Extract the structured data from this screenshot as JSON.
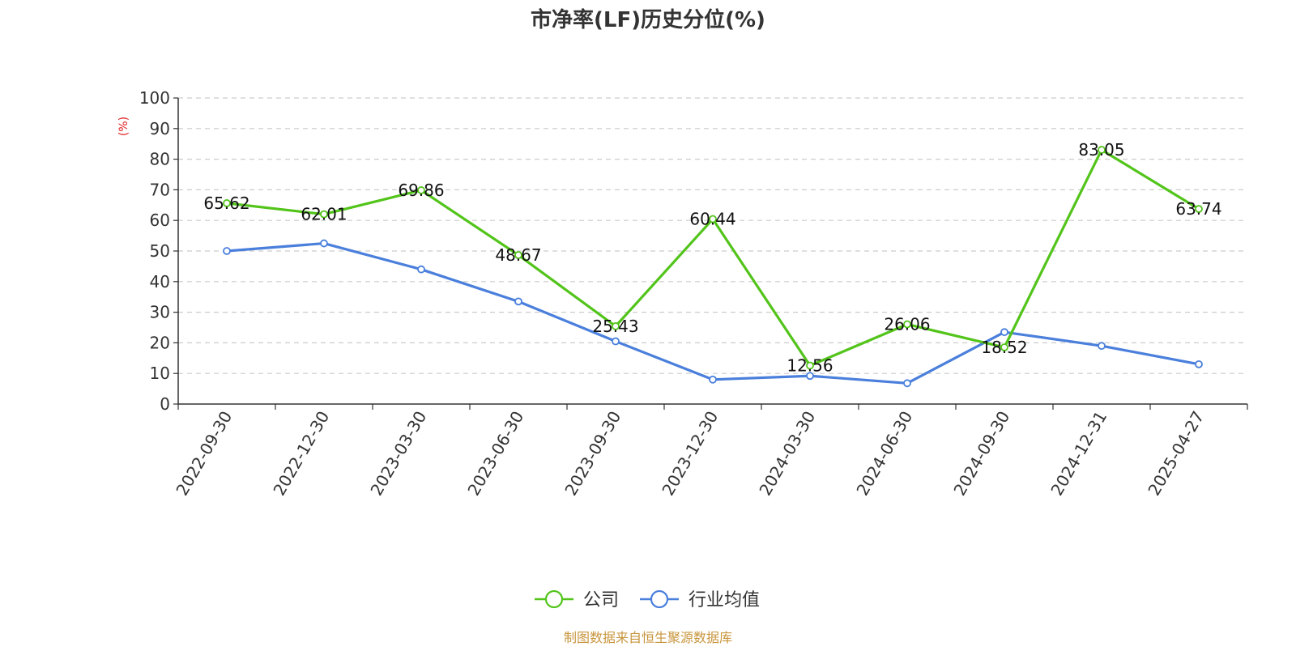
{
  "chart_data": {
    "type": "line",
    "title": "市净率(LF)历史分位(%)",
    "ylabel": "(%)",
    "xlabel": "",
    "ylim": [
      0,
      100
    ],
    "yticks": [
      0,
      10,
      20,
      30,
      40,
      50,
      60,
      70,
      80,
      90,
      100
    ],
    "grid": true,
    "legend_position": "bottom-center",
    "categories": [
      "2022-09-30",
      "2022-12-30",
      "2023-03-30",
      "2023-06-30",
      "2023-09-30",
      "2023-12-30",
      "2024-03-30",
      "2024-06-30",
      "2024-09-30",
      "2024-12-31",
      "2025-04-27"
    ],
    "series": [
      {
        "name": "公司",
        "color": "#52c41a",
        "values": [
          65.62,
          62.01,
          69.86,
          48.67,
          25.43,
          60.44,
          12.56,
          26.06,
          18.52,
          83.05,
          63.74
        ],
        "labels": [
          "65.62",
          "62.01",
          "69.86",
          "48.67",
          "25.43",
          "60.44",
          "12.56",
          "26.06",
          "18.52",
          "83.05",
          "63.74"
        ]
      },
      {
        "name": "行业均值",
        "color": "#4a7fdc",
        "values": [
          50,
          52.5,
          44,
          33.5,
          20.5,
          8,
          9.2,
          6.8,
          23.5,
          19,
          13
        ]
      }
    ],
    "source": "制图数据来自恒生聚源数据库",
    "source_color": "#c8963e",
    "ylabel_color": "#e02020"
  }
}
